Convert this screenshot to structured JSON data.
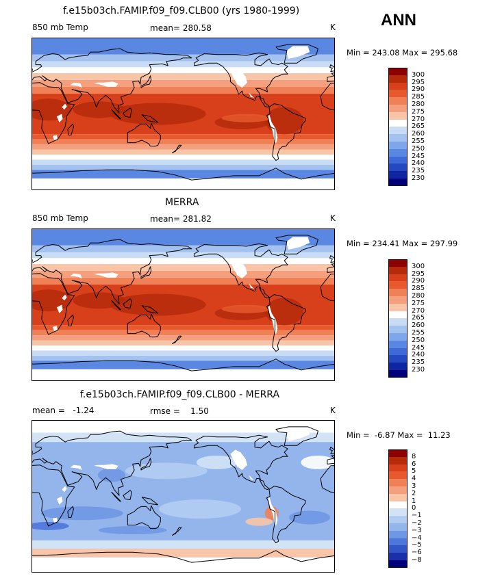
{
  "season_label": "ANN",
  "panels": [
    {
      "id": "model",
      "title": "f.e15b03ch.FAMIP.f09_f09.CLB00 (yrs 1980-1999)",
      "left_label": "850 mb Temp",
      "center_label": "mean= 280.58",
      "units": "K",
      "range_text": "Min = 243.08 Max = 295.68",
      "map_style": "abs",
      "colorbar": {
        "colors": [
          "#8b0000",
          "#b52a0a",
          "#d8401b",
          "#e85a2e",
          "#f08055",
          "#f4a07e",
          "#f8c5a8",
          "#ffffff",
          "#c9dcf5",
          "#a3c2f0",
          "#7ea6ea",
          "#5a87e2",
          "#3d68d6",
          "#2548c0",
          "#0e24a0",
          "#00007a"
        ],
        "ticks": [
          "300",
          "295",
          "290",
          "285",
          "280",
          "275",
          "270",
          "265",
          "260",
          "255",
          "250",
          "245",
          "240",
          "235",
          "230"
        ]
      }
    },
    {
      "id": "obs",
      "title": "MERRA",
      "left_label": "850 mb Temp",
      "center_label": "mean= 281.82",
      "units": "K",
      "range_text": "Min = 234.41 Max = 297.99",
      "map_style": "abs",
      "colorbar": {
        "colors": [
          "#8b0000",
          "#b52a0a",
          "#d8401b",
          "#e85a2e",
          "#f08055",
          "#f4a07e",
          "#f8c5a8",
          "#ffffff",
          "#c9dcf5",
          "#a3c2f0",
          "#7ea6ea",
          "#5a87e2",
          "#3d68d6",
          "#2548c0",
          "#0e24a0",
          "#00007a"
        ],
        "ticks": [
          "300",
          "295",
          "290",
          "285",
          "280",
          "275",
          "270",
          "265",
          "260",
          "255",
          "250",
          "245",
          "240",
          "235",
          "230"
        ]
      }
    },
    {
      "id": "diff",
      "title": "f.e15b03ch.FAMIP.f09_f09.CLB00 - MERRA",
      "left_label": "mean =   -1.24",
      "center_label": "rmse =    1.50",
      "units": "K",
      "range_text": "Min =  -6.87 Max =  11.23",
      "map_style": "diff",
      "colorbar": {
        "colors": [
          "#8b0000",
          "#b52a0a",
          "#d8401b",
          "#e85a2e",
          "#f08055",
          "#f4a07e",
          "#f8c5a8",
          "#ffffff",
          "#d3e3f6",
          "#b3cdf2",
          "#93b5ec",
          "#7097e4",
          "#4f76da",
          "#3354c7",
          "#1a30a8",
          "#00007a"
        ],
        "ticks": [
          "8",
          "6",
          "5",
          "4",
          "3",
          "2",
          "1",
          "0",
          "−1",
          "−2",
          "−3",
          "−4",
          "−5",
          "−6",
          "−8"
        ]
      }
    }
  ]
}
